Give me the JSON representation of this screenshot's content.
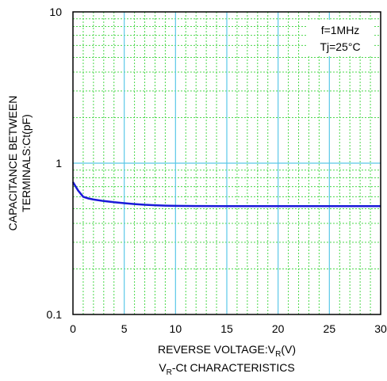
{
  "chart_data": {
    "type": "line",
    "title": "",
    "xlabel_main": "REVERSE VOLTAGE:V",
    "xlabel_sub": "R",
    "xlabel_tail": "(V)",
    "ylabel_line1": "CAPACITANCE BETWEEN",
    "ylabel_line2": "TERMINALS:Ct(pF)",
    "caption_main": "V",
    "caption_sub": "R",
    "caption_tail": "-Ct CHARACTERISTICS",
    "x_scale": "linear",
    "y_scale": "log",
    "xlim": [
      0,
      30
    ],
    "ylim": [
      0.1,
      10
    ],
    "x_ticks": [
      0,
      5,
      10,
      15,
      20,
      25,
      30
    ],
    "x_tick_labels": [
      "0",
      "5",
      "10",
      "15",
      "20",
      "25",
      "30"
    ],
    "y_ticks": [
      0.1,
      1,
      10
    ],
    "y_tick_labels": [
      "0.1",
      "1",
      "10"
    ],
    "grid": true,
    "annotation": {
      "lines": [
        "f=1MHz",
        "Tj=25°C"
      ],
      "placement": "top-right"
    },
    "series": [
      {
        "color": "#1a1ad8",
        "x": [
          0,
          0.5,
          1,
          1.5,
          2,
          3,
          4,
          5,
          6,
          7,
          8,
          9,
          10,
          12,
          15,
          20,
          25,
          30
        ],
        "y": [
          0.75,
          0.66,
          0.6,
          0.585,
          0.575,
          0.562,
          0.552,
          0.544,
          0.537,
          0.531,
          0.527,
          0.524,
          0.522,
          0.521,
          0.52,
          0.52,
          0.52,
          0.52
        ]
      }
    ]
  },
  "colors": {
    "major_grid": "#5bc8e8",
    "minor_grid": "#4cd84c",
    "curve": "#1a1ad8"
  }
}
